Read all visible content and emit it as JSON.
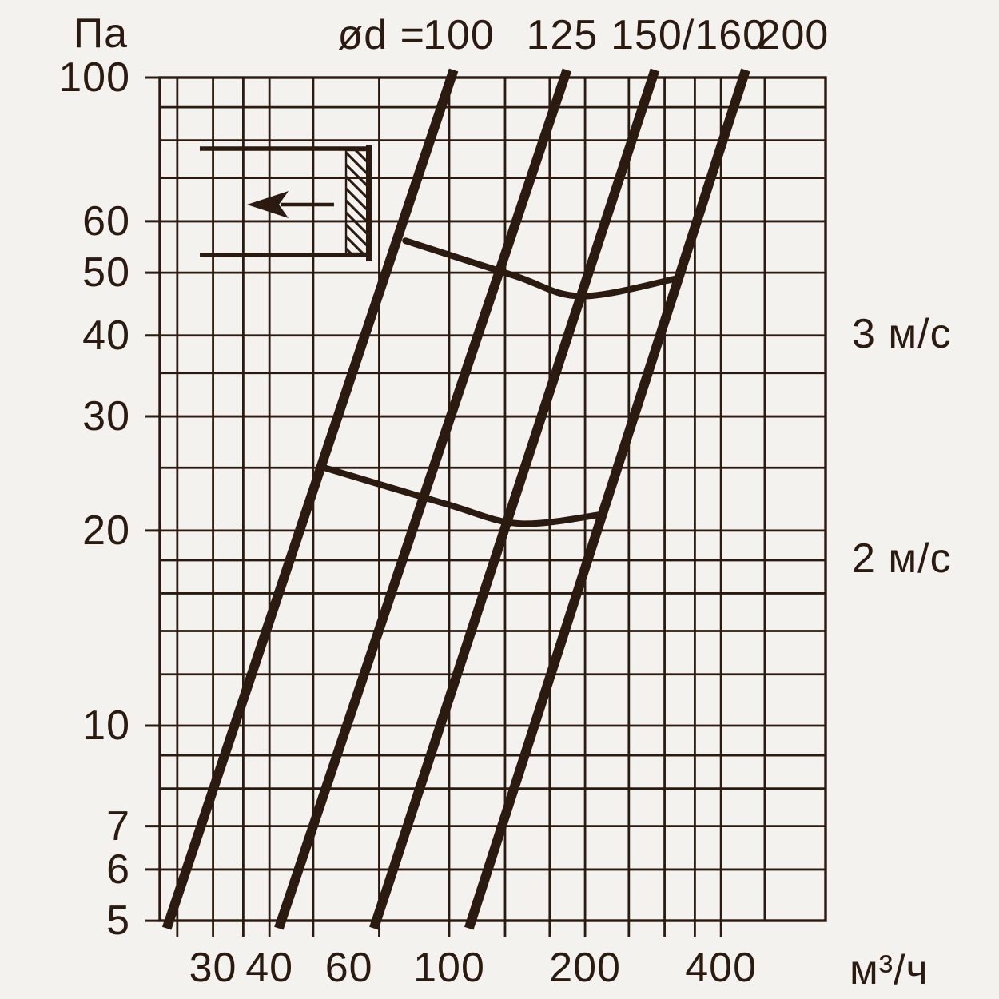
{
  "colors": {
    "background": "#f4f2ef",
    "ink": "#2a1a10"
  },
  "chart_data": {
    "type": "line",
    "title": "",
    "x_axis": {
      "unit": "м³/ч",
      "scale": "log",
      "range": [
        22.9,
        680
      ],
      "labeled_ticks": [
        30,
        40,
        60,
        100,
        200,
        400
      ],
      "gridlines": [
        25,
        30,
        35,
        40,
        50,
        70,
        100,
        133,
        167,
        200,
        250,
        300,
        350,
        400,
        500
      ]
    },
    "y_axis": {
      "unit": "Па",
      "scale": "log",
      "range": [
        5,
        100
      ],
      "labeled_ticks": [
        5,
        6,
        7,
        10,
        20,
        30,
        40,
        50,
        60,
        100
      ],
      "gridlines": [
        5,
        6,
        7,
        8,
        9,
        10,
        12,
        14,
        16,
        18,
        20,
        25,
        30,
        35,
        40,
        50,
        60,
        70,
        80,
        90,
        100
      ]
    },
    "diameter_header_prefix": "ød =",
    "diameter_lines": [
      {
        "label": "100",
        "points": [
          [
            24,
            5
          ],
          [
            101,
            100
          ]
        ],
        "label_q": 105
      },
      {
        "label": "125",
        "points": [
          [
            42.5,
            5
          ],
          [
            180,
            100
          ]
        ],
        "label_q": 178
      },
      {
        "label": "150/160",
        "points": [
          [
            69,
            5
          ],
          [
            282,
            100
          ]
        ],
        "label_q": 339
      },
      {
        "label": "200",
        "points": [
          [
            112,
            5
          ],
          [
            448,
            100
          ]
        ],
        "label_q": 578
      }
    ],
    "velocity_curves": [
      {
        "label": "2 м/с",
        "points": [
          [
            53,
            25
          ],
          [
            98,
            22
          ],
          [
            143,
            20.5
          ],
          [
            220,
            21.2
          ]
        ],
        "label_pa": 18
      },
      {
        "label": "3 м/с",
        "points": [
          [
            80,
            56
          ],
          [
            139,
            49.5
          ],
          [
            196,
            46
          ],
          [
            320,
            49
          ]
        ],
        "label_pa": 40
      }
    ],
    "icon": {
      "name": "duct-airflow-icon",
      "arrow_direction": "left"
    }
  }
}
